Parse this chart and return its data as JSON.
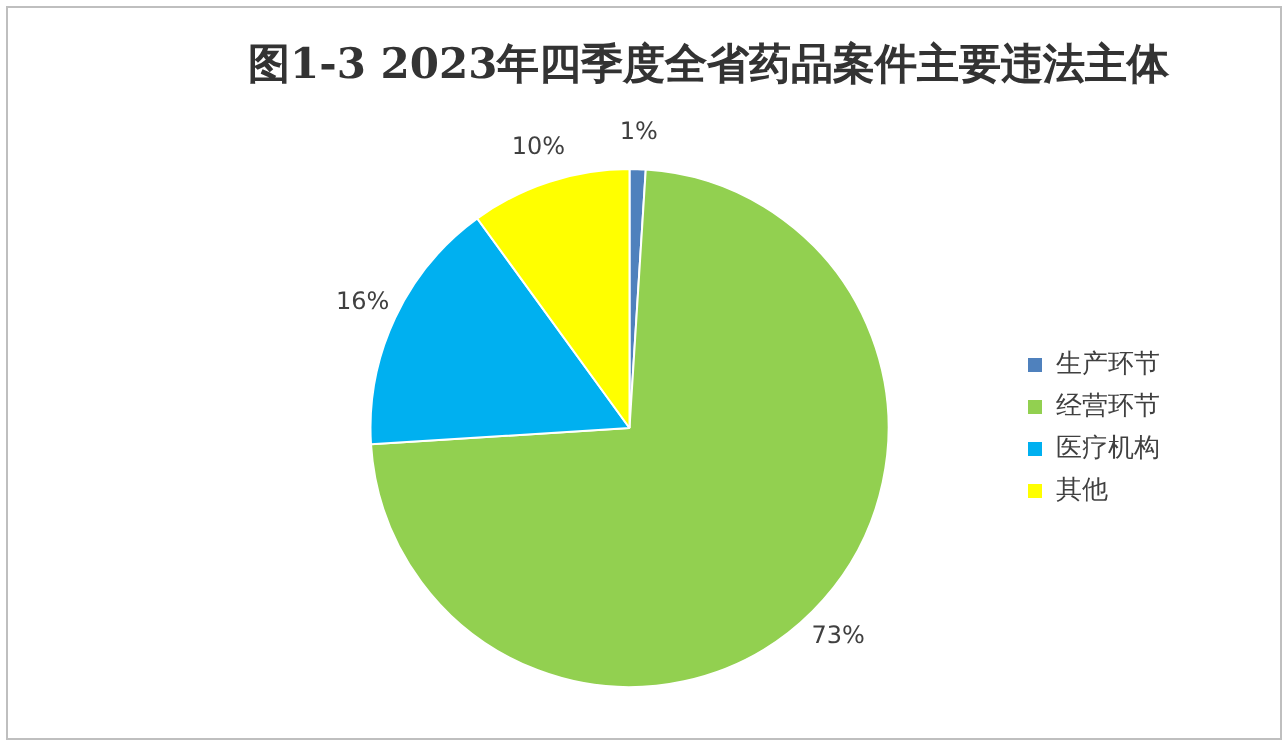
{
  "chart_data": {
    "type": "pie",
    "title": "图1-3  2023年四季度全省药品案件主要违法主体",
    "categories": [
      "生产环节",
      "经营环节",
      "医疗机构",
      "其他"
    ],
    "values": [
      1,
      73,
      16,
      10
    ],
    "colors": [
      "#4f81bd",
      "#92d050",
      "#00b0f0",
      "#ffff00"
    ],
    "value_labels": [
      "1%",
      "73%",
      "16%",
      "10%"
    ],
    "legend": "right"
  }
}
